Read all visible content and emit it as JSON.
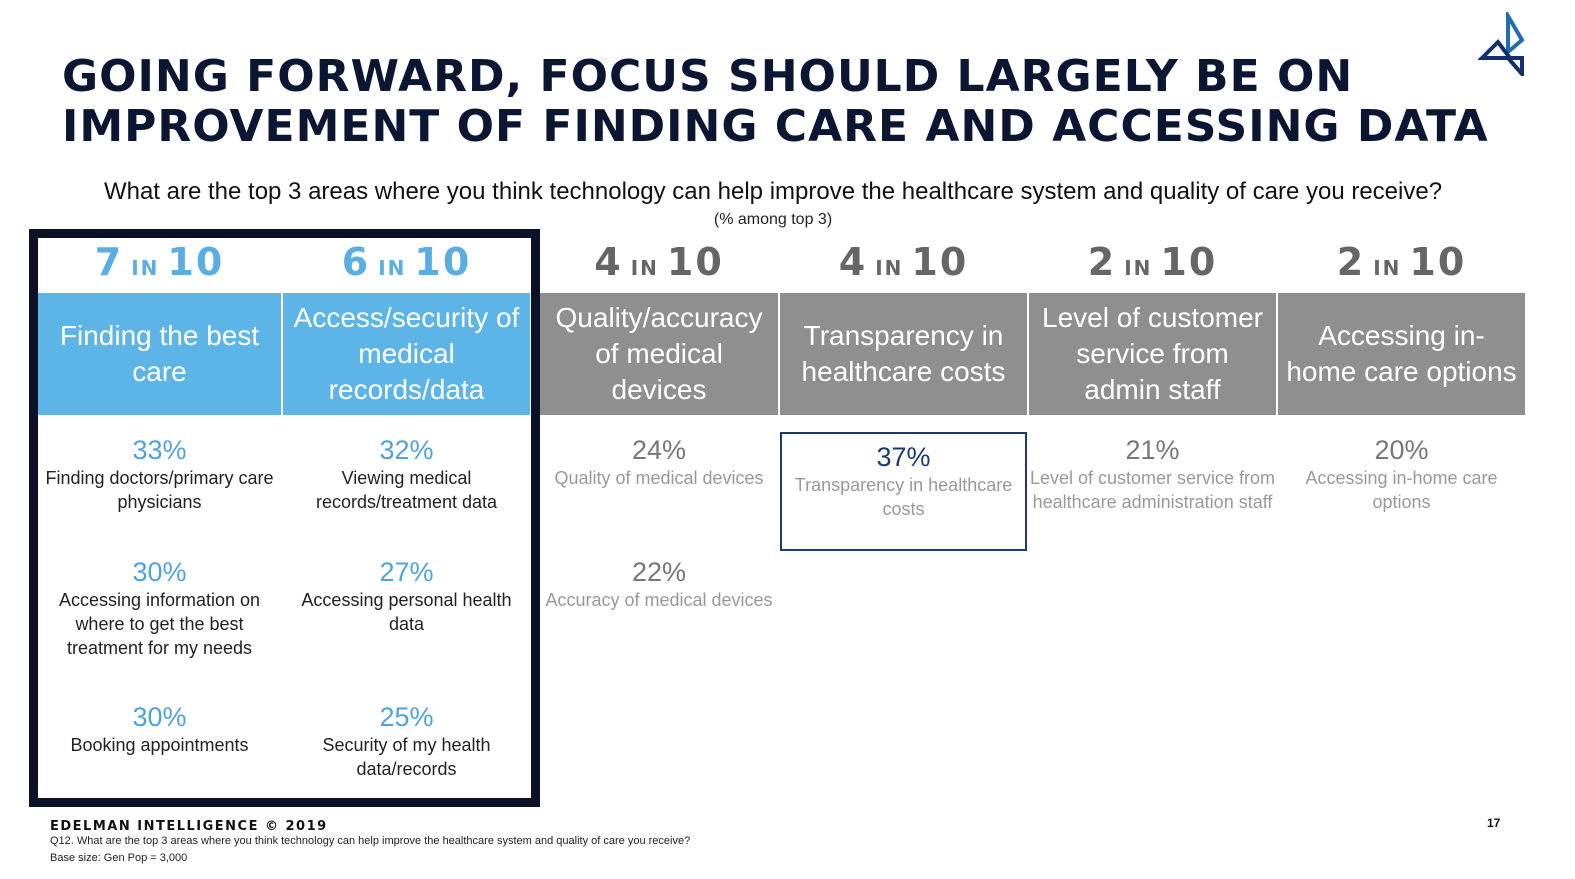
{
  "title_line1": "Going forward, focus should largely be on",
  "title_line2": "improvement of finding care and accessing data",
  "question": "What are the top 3 areas where you think technology can help improve the healthcare system and quality of care you receive?",
  "subtitle": "(% among top 3)",
  "columns": [
    {
      "n": "7",
      "in": "IN",
      "of": "10",
      "header": "Finding the best care",
      "highlight": true,
      "items": [
        {
          "pct": "33%",
          "label": "Finding doctors/primary care physicians"
        },
        {
          "pct": "30%",
          "label": "Accessing information on where to get the best treatment for my needs"
        },
        {
          "pct": "30%",
          "label": "Booking appointments"
        }
      ]
    },
    {
      "n": "6",
      "in": "IN",
      "of": "10",
      "header": "Access/security of medical records/data",
      "highlight": true,
      "items": [
        {
          "pct": "32%",
          "label": "Viewing medical records/treatment data"
        },
        {
          "pct": "27%",
          "label": "Accessing personal health data"
        },
        {
          "pct": "25%",
          "label": "Security of my health data/records"
        }
      ]
    },
    {
      "n": "4",
      "in": "IN",
      "of": "10",
      "header": "Quality/accuracy of medical devices",
      "highlight": false,
      "items": [
        {
          "pct": "24%",
          "label": "Quality of medical devices"
        },
        {
          "pct": "22%",
          "label": "Accuracy of medical devices"
        }
      ]
    },
    {
      "n": "4",
      "in": "IN",
      "of": "10",
      "header": "Transparency in healthcare costs",
      "highlight": false,
      "boxed": true,
      "items": [
        {
          "pct": "37%",
          "label": "Transparency in healthcare costs"
        }
      ]
    },
    {
      "n": "2",
      "in": "IN",
      "of": "10",
      "header": "Level of customer service from admin staff",
      "highlight": false,
      "items": [
        {
          "pct": "21%",
          "label": "Level of customer service from healthcare administration staff"
        }
      ]
    },
    {
      "n": "2",
      "in": "IN",
      "of": "10",
      "header": "Accessing in-home care options",
      "highlight": false,
      "items": [
        {
          "pct": "20%",
          "label": "Accessing in-home care options"
        }
      ]
    }
  ],
  "footer": {
    "brand": "EDELMAN INTELLIGENCE © 2019",
    "question": "Q12. What are the top 3 areas where you think technology can help improve the healthcare system and quality of care you receive?",
    "base": "Base size: Gen Pop = 3,000",
    "page": "17"
  },
  "colors": {
    "highlight": "#5db4e6",
    "gray": "#8f8f8f",
    "navy": "#0b1126"
  }
}
